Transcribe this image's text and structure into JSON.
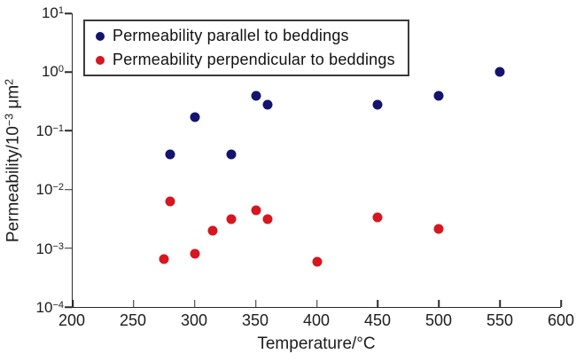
{
  "chart_data": {
    "type": "scatter",
    "title": "",
    "xlabel": "Temperature/°C",
    "ylabel": "Permeability/10⁻³ μm²",
    "ylabel_rich": {
      "base": "Permeability/10",
      "exp": "−3",
      "unit": " μm",
      "unit_exp": "2"
    },
    "x_axis": {
      "min": 200,
      "max": 600,
      "ticks": [
        200,
        250,
        300,
        350,
        400,
        450,
        500,
        550,
        600
      ]
    },
    "y_axis": {
      "scale": "log",
      "min_exp": -4,
      "max_exp": 1,
      "tick_exponents": [
        1,
        0,
        -1,
        -2,
        -3,
        -4
      ]
    },
    "grid": false,
    "legend_position": "top-left-inside",
    "series": [
      {
        "name": "Permeability parallel to beddings",
        "color": "#14146E",
        "points": [
          [
            280,
            0.04
          ],
          [
            300,
            0.17
          ],
          [
            330,
            0.04
          ],
          [
            350,
            0.4
          ],
          [
            360,
            0.28
          ],
          [
            450,
            0.28
          ],
          [
            500,
            0.4
          ],
          [
            550,
            1.0
          ]
        ]
      },
      {
        "name": "Permeability perpendicular to beddings",
        "color": "#D7161F",
        "points": [
          [
            275,
            0.00065
          ],
          [
            280,
            0.0063
          ],
          [
            300,
            0.0008
          ],
          [
            315,
            0.002
          ],
          [
            330,
            0.0031
          ],
          [
            350,
            0.0045
          ],
          [
            360,
            0.0031
          ],
          [
            400,
            0.00058
          ],
          [
            450,
            0.0034
          ],
          [
            500,
            0.0021
          ]
        ]
      }
    ]
  }
}
